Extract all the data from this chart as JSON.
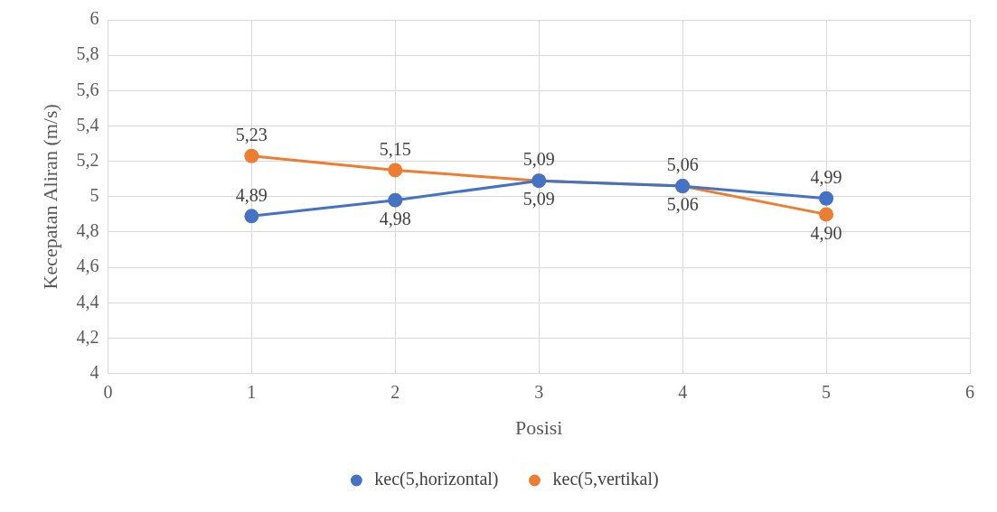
{
  "chart_data": {
    "type": "line",
    "xlabel": "Posisi",
    "ylabel": "Kecepatan Aliran (m/s)",
    "x": [
      1,
      2,
      3,
      4,
      5
    ],
    "series": [
      {
        "name": "kec(5,horizontal)",
        "color": "#4472c4",
        "values": [
          4.89,
          4.98,
          5.09,
          5.06,
          4.99
        ],
        "value_labels": [
          "4,89",
          "4,98",
          "5,09",
          "5,06",
          "4,99"
        ]
      },
      {
        "name": "kec(5,vertikal)",
        "color": "#ed7d31",
        "values": [
          5.23,
          5.15,
          5.09,
          5.06,
          4.9
        ],
        "value_labels": [
          "5,23",
          "5,15",
          "5,09",
          "5,06",
          "4,90"
        ]
      }
    ],
    "xlim": [
      0,
      6
    ],
    "xticks": [
      0,
      1,
      2,
      3,
      4,
      5,
      6
    ],
    "ylim": [
      4,
      6
    ],
    "yticks": [
      4,
      {
        "value": 4.2,
        "label": "4,2"
      },
      {
        "value": 4.4,
        "label": "4,4"
      },
      {
        "value": 4.6,
        "label": "4,6"
      },
      {
        "value": 4.8,
        "label": "4,8"
      },
      5,
      {
        "value": 5.2,
        "label": "5,2"
      },
      {
        "value": 5.4,
        "label": "5,4"
      },
      {
        "value": 5.6,
        "label": "5,6"
      },
      {
        "value": 5.8,
        "label": "5,8"
      },
      6
    ],
    "grid": true,
    "legend": "bottom",
    "marker": "circle",
    "line_style": "solid"
  }
}
